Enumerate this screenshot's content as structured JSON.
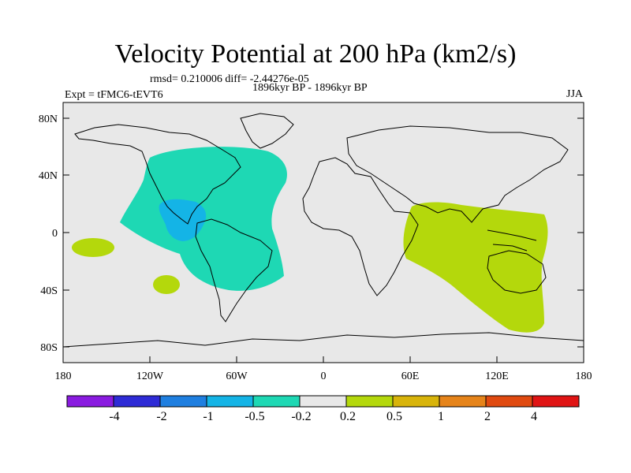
{
  "title": "Velocity Potential at 200 hPa (km2/s)",
  "stats": "rmsd= 0.210006  diff= -2.44276e-05",
  "experiment": "Expt = tFMC6-tEVT6",
  "period": "1896kyr BP - 1896kyr BP",
  "season": "JJA",
  "axes": {
    "lat_ticks": [
      "80N",
      "40N",
      "0",
      "40S",
      "80S"
    ],
    "lon_ticks": [
      "180",
      "120W",
      "60W",
      "0",
      "60E",
      "120E",
      "180"
    ]
  },
  "colorbar": {
    "labels": [
      "-4",
      "-2",
      "-1",
      "-0.5",
      "-0.2",
      "0.2",
      "0.5",
      "1",
      "2",
      "4"
    ],
    "colors": [
      "#8a1be0",
      "#2e2bd6",
      "#1f7fe0",
      "#14b4e6",
      "#1ed8b4",
      "#e8e8e8",
      "#b4d80c",
      "#d8b40a",
      "#e6841a",
      "#e04a10",
      "#e01414"
    ]
  },
  "colors": {
    "background": "#e8e8e8",
    "negative_weak": "#1ed8b4",
    "negative_mid": "#14b4e6",
    "positive_weak": "#b4d80c",
    "coast": "#000000"
  }
}
